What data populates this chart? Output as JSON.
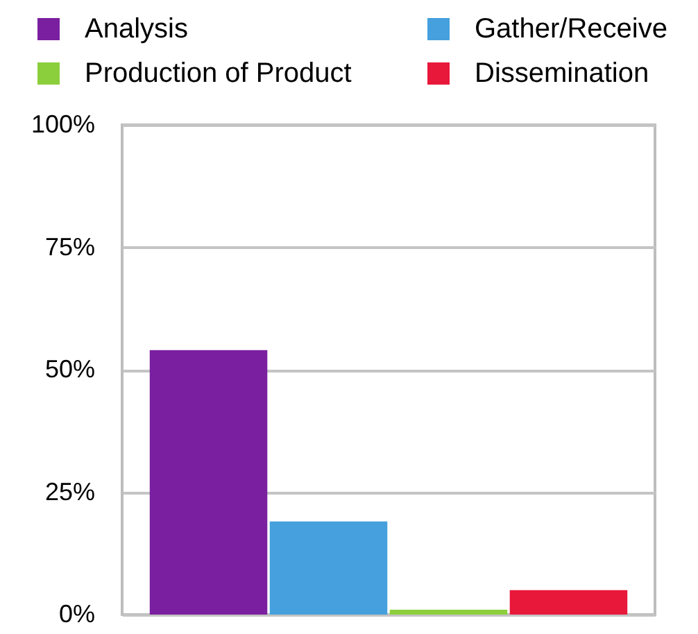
{
  "chart_data": {
    "type": "bar",
    "categories": [
      null,
      null,
      null,
      null
    ],
    "series": [
      {
        "name": "Analysis",
        "color": "#7a1fa0",
        "values": [
          54,
          null,
          null,
          null
        ]
      },
      {
        "name": "Gather/Receive",
        "color": "#45a0dd",
        "values": [
          null,
          19,
          null,
          null
        ]
      },
      {
        "name": "Production of Product",
        "color": "#8ccf3c",
        "values": [
          null,
          null,
          1,
          null
        ]
      },
      {
        "name": "Dissemination",
        "color": "#e8183b",
        "values": [
          null,
          null,
          null,
          5
        ]
      }
    ],
    "ylim": [
      0,
      100
    ],
    "yticks": [
      {
        "value": 0,
        "label": "0%"
      },
      {
        "value": 25,
        "label": "25%"
      },
      {
        "value": 50,
        "label": "50%"
      },
      {
        "value": 75,
        "label": "75%"
      },
      {
        "value": 100,
        "label": "100%"
      }
    ],
    "grid": "y",
    "legend": "top"
  }
}
